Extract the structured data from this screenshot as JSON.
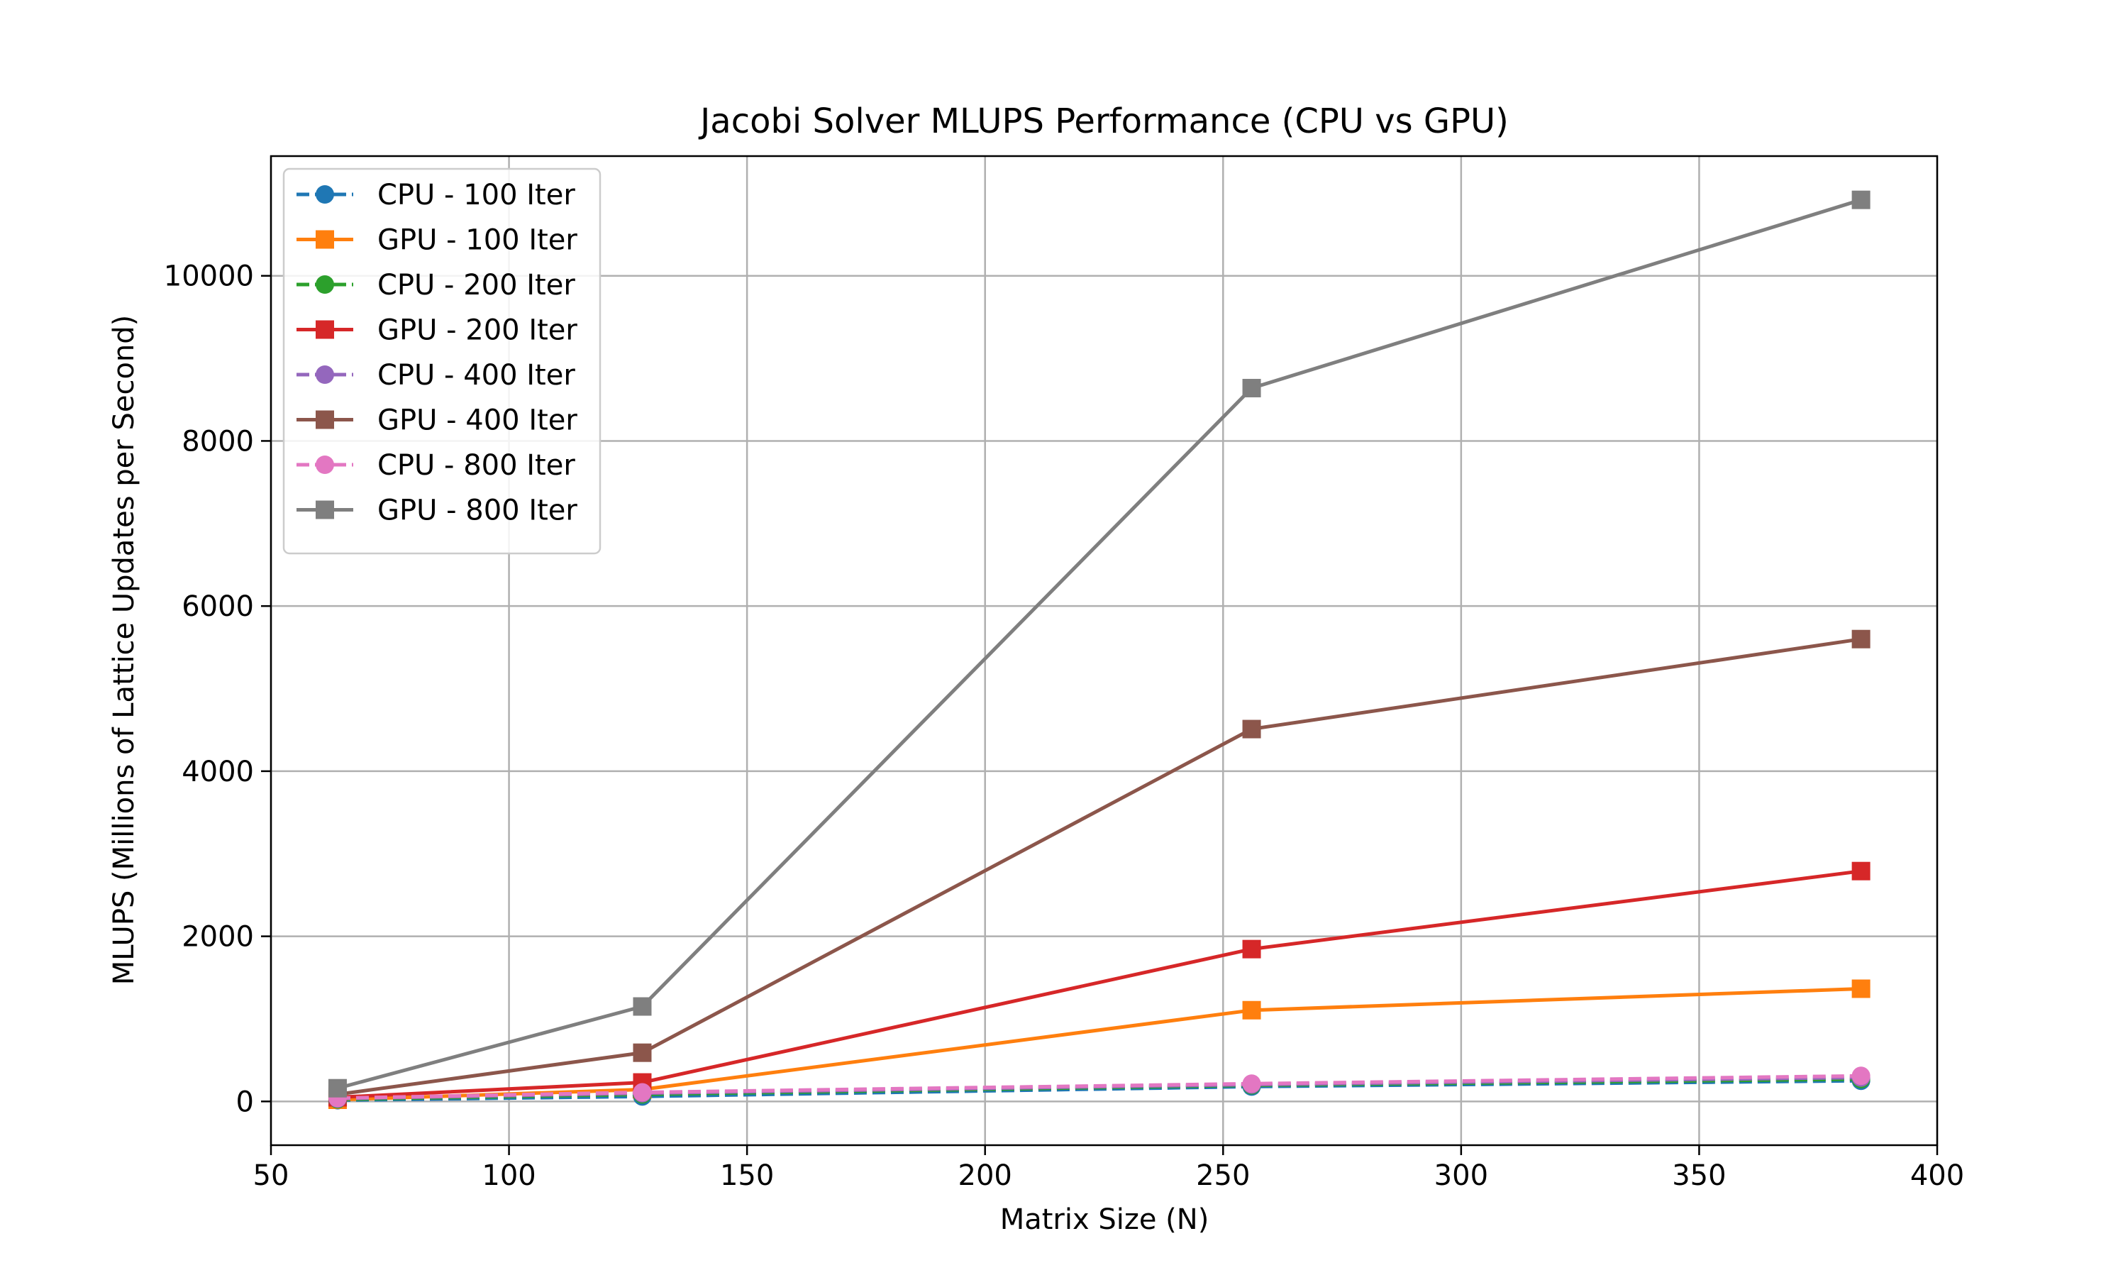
{
  "chart_data": {
    "type": "line",
    "title": "Jacobi Solver MLUPS Performance (CPU vs GPU)",
    "xlabel": "Matrix Size (N)",
    "ylabel": "MLUPS (Millions of Lattice Updates per Second)",
    "xlim": [
      50,
      400
    ],
    "ylim": [
      -530,
      11450
    ],
    "xticks": [
      50,
      100,
      150,
      200,
      250,
      300,
      350,
      400
    ],
    "yticks": [
      0,
      2000,
      4000,
      6000,
      8000,
      10000
    ],
    "grid": true,
    "legend_position": "upper-left",
    "x": [
      64,
      128,
      256,
      384
    ],
    "series": [
      {
        "name": "CPU - 100 Iter",
        "color": "#1f77b4",
        "linestyle": "dashed",
        "marker": "circle",
        "values": [
          15,
          60,
          180,
          250
        ]
      },
      {
        "name": "GPU - 100 Iter",
        "color": "#ff7f0e",
        "linestyle": "solid",
        "marker": "square",
        "values": [
          20,
          145,
          1105,
          1365
        ]
      },
      {
        "name": "CPU - 200 Iter",
        "color": "#2ca02c",
        "linestyle": "dashed",
        "marker": "circle",
        "values": [
          25,
          85,
          195,
          270
        ]
      },
      {
        "name": "GPU - 200 Iter",
        "color": "#d62728",
        "linestyle": "solid",
        "marker": "square",
        "values": [
          50,
          230,
          1845,
          2790
        ]
      },
      {
        "name": "CPU - 400 Iter",
        "color": "#9467bd",
        "linestyle": "dashed",
        "marker": "circle",
        "values": [
          35,
          100,
          205,
          290
        ]
      },
      {
        "name": "GPU - 400 Iter",
        "color": "#8c564b",
        "linestyle": "solid",
        "marker": "square",
        "values": [
          85,
          590,
          4510,
          5600
        ]
      },
      {
        "name": "CPU - 800 Iter",
        "color": "#e377c2",
        "linestyle": "dashed",
        "marker": "circle",
        "values": [
          40,
          110,
          215,
          310
        ]
      },
      {
        "name": "GPU - 800 Iter",
        "color": "#7f7f7f",
        "linestyle": "solid",
        "marker": "square",
        "values": [
          160,
          1150,
          8640,
          10920
        ]
      }
    ]
  }
}
